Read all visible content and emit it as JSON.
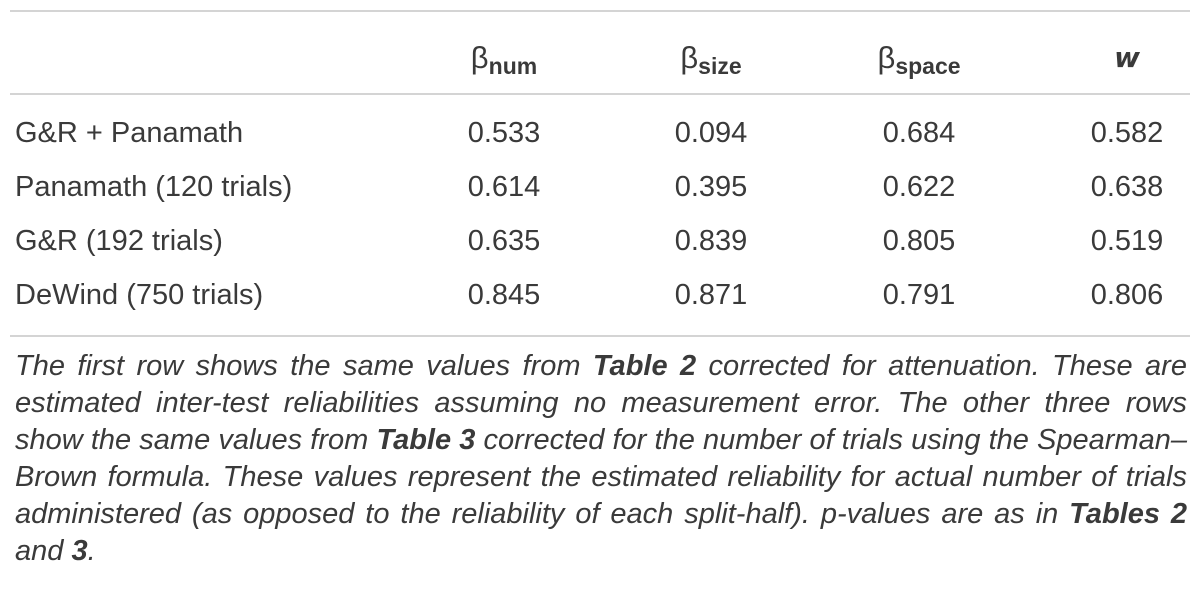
{
  "table": {
    "headers": [
      {
        "symbol": "β",
        "sub": "num"
      },
      {
        "symbol": "β",
        "sub": "size"
      },
      {
        "symbol": "β",
        "sub": "space"
      },
      {
        "symbol": "w",
        "sub": ""
      }
    ],
    "rows": [
      {
        "label": "G&R + Panamath",
        "values": [
          "0.533",
          "0.094",
          "0.684",
          "0.582"
        ]
      },
      {
        "label": "Panamath (120 trials)",
        "values": [
          "0.614",
          "0.395",
          "0.622",
          "0.638"
        ]
      },
      {
        "label": "G&R (192 trials)",
        "values": [
          "0.635",
          "0.839",
          "0.805",
          "0.519"
        ]
      },
      {
        "label": "DeWind (750 trials)",
        "values": [
          "0.845",
          "0.871",
          "0.791",
          "0.806"
        ]
      }
    ]
  },
  "footnote": {
    "p1": "The first row shows the same values from ",
    "ref1": "Table 2",
    "p2": " corrected for attenuation. These are estimated inter-test reliabilities assuming no measurement error. The other three rows show the same values from ",
    "ref2": "Table 3",
    "p3": " corrected for the number of trials using the Spearman–Brown formula. These values represent the estimated reliability for actual number of trials administered (as opposed to the reliability of each split-half). p-values are as in ",
    "ref3": "Tables 2",
    "p4": " and ",
    "ref4": "3",
    "p5": "."
  }
}
